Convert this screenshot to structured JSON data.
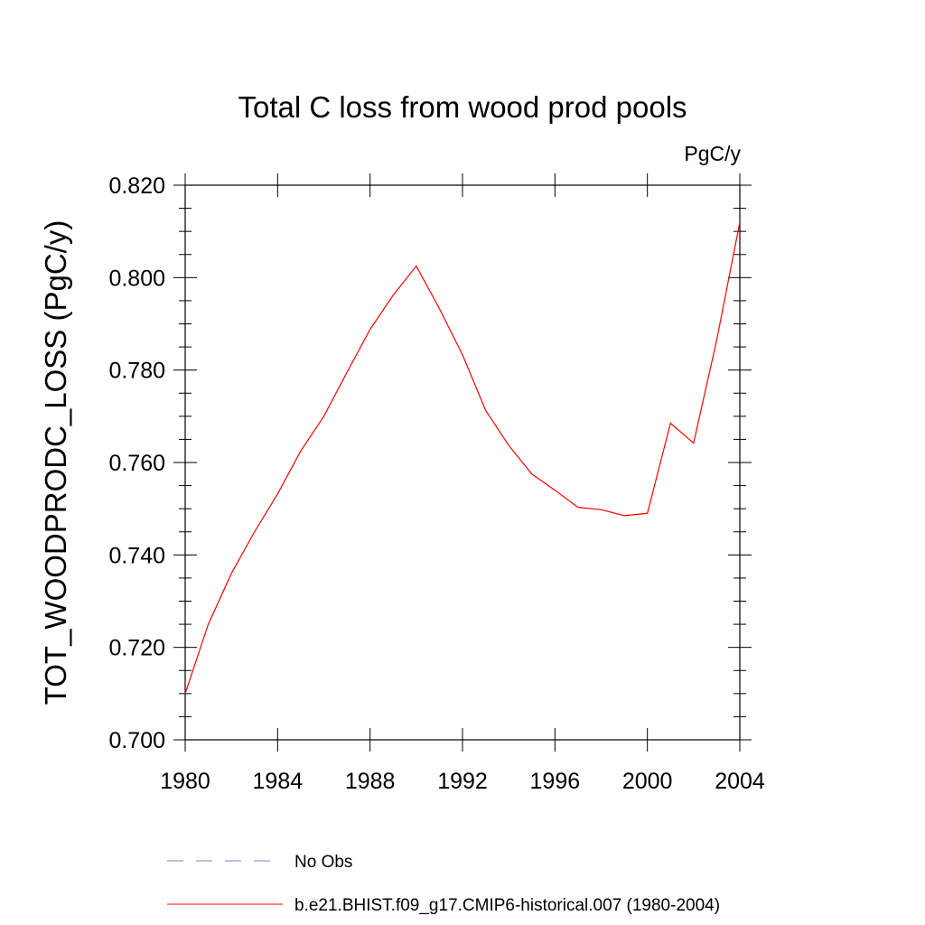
{
  "chart_data": {
    "type": "line",
    "title": "Total C loss from wood prod pools",
    "units_label": "PgC/y",
    "ylabel": "TOT_WOODPRODC_LOSS  (PgC/y)",
    "xlabel": "",
    "xlim": [
      1980,
      2004
    ],
    "ylim": [
      0.7,
      0.82
    ],
    "x_ticks": [
      1980,
      1984,
      1988,
      1992,
      1996,
      2000,
      2004
    ],
    "x_tick_labels": [
      "1980",
      "1984",
      "1988",
      "1992",
      "1996",
      "2000",
      "2004"
    ],
    "y_ticks": [
      0.7,
      0.72,
      0.74,
      0.76,
      0.78,
      0.8,
      0.82
    ],
    "y_tick_labels": [
      "0.700",
      "0.720",
      "0.740",
      "0.760",
      "0.780",
      "0.800",
      "0.820"
    ],
    "grid": false,
    "legend_placement": "bottom",
    "series": [
      {
        "name": "b.e21.BHIST.f09_g17.CMIP6-historical.007 (1980-2004)",
        "color": "#ff0000",
        "style": "solid",
        "x": [
          1980,
          1981,
          1982,
          1983,
          1984,
          1985,
          1986,
          1987,
          1988,
          1989,
          1990,
          1991,
          1992,
          1993,
          1994,
          1995,
          1996,
          1997,
          1998,
          1999,
          2000,
          2001,
          2002,
          2003,
          2004
        ],
        "values": [
          0.71,
          0.725,
          0.736,
          0.745,
          0.7532,
          0.7625,
          0.77,
          0.7795,
          0.7888,
          0.7962,
          0.8025,
          0.7933,
          0.7833,
          0.7713,
          0.7637,
          0.7575,
          0.754,
          0.7503,
          0.7498,
          0.7485,
          0.749,
          0.7685,
          0.7642,
          0.7865,
          0.812
        ]
      },
      {
        "name": "No Obs",
        "color": "#8080c0",
        "style": "dashed",
        "x": [],
        "values": []
      }
    ]
  }
}
